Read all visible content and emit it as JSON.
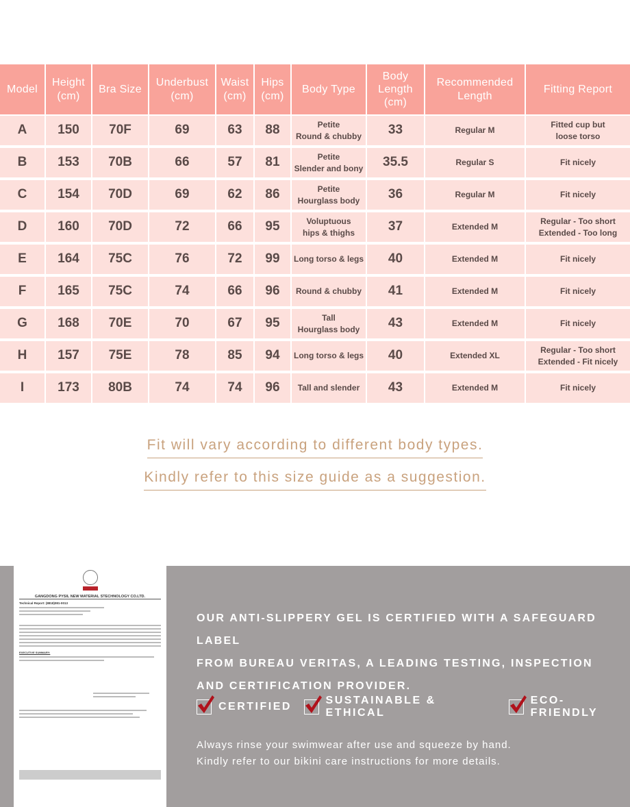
{
  "table": {
    "headers": [
      "Model",
      "Height\n(cm)",
      "Bra Size",
      "Underbust\n(cm)",
      "Waist\n(cm)",
      "Hips\n(cm)",
      "Body Type",
      "Body\nLength\n(cm)",
      "Recommended\nLength",
      "Fitting Report"
    ],
    "rows": [
      [
        "A",
        "150",
        "70F",
        "69",
        "63",
        "88",
        "Petite\nRound & chubby",
        "33",
        "Regular M",
        "Fitted cup but\nloose torso"
      ],
      [
        "B",
        "153",
        "70B",
        "66",
        "57",
        "81",
        "Petite\nSlender and bony",
        "35.5",
        "Regular S",
        "Fit nicely"
      ],
      [
        "C",
        "154",
        "70D",
        "69",
        "62",
        "86",
        "Petite\nHourglass body",
        "36",
        "Regular M",
        "Fit nicely"
      ],
      [
        "D",
        "160",
        "70D",
        "72",
        "66",
        "95",
        "Voluptuous\nhips & thighs",
        "37",
        "Extended M",
        "Regular - Too short\nExtended - Too long"
      ],
      [
        "E",
        "164",
        "75C",
        "76",
        "72",
        "99",
        "Long torso & legs",
        "40",
        "Extended M",
        "Fit nicely"
      ],
      [
        "F",
        "165",
        "75C",
        "74",
        "66",
        "96",
        "Round & chubby",
        "41",
        "Extended M",
        "Fit nicely"
      ],
      [
        "G",
        "168",
        "70E",
        "70",
        "67",
        "95",
        "Tall\nHourglass body",
        "43",
        "Extended M",
        "Fit nicely"
      ],
      [
        "H",
        "157",
        "75E",
        "78",
        "85",
        "94",
        "Long torso & legs",
        "40",
        "Extended XL",
        "Regular - Too short\nExtended - Fit nicely"
      ],
      [
        "I",
        "173",
        "80B",
        "74",
        "74",
        "96",
        "Tall and slender",
        "43",
        "Extended M",
        "Fit nicely"
      ]
    ]
  },
  "notes": [
    "Fit will vary according to different body types.",
    "Kindly refer to this size guide as a suggestion."
  ],
  "certificate": {
    "company": "GANGDONG PYSIL NEW MATERIAL STECHNOLOGY CO.LTD.",
    "report": "Technical Report:  (8818)081-0013",
    "summary": "EXECUTIVE SUMMARY:"
  },
  "certification": {
    "lines": [
      "OUR ANTI-SLIPPERY GEL IS CERTIFIED WITH A SAFEGUARD LABEL",
      "FROM BUREAU VERITAS, A LEADING TESTING, INSPECTION",
      "AND CERTIFICATION PROVIDER."
    ],
    "badges": [
      "CERTIFIED",
      "SUSTAINABLE & ETHICAL",
      "ECO-FRIENDLY"
    ],
    "care": [
      "Always rinse your swimwear after use and squeeze by hand.",
      "Kindly refer to our bikini care instructions for more details."
    ]
  },
  "colors": {
    "header": "#f9a39a",
    "cell": "#fde0dc",
    "note": "#c9a27e",
    "panel": "#a29e9e",
    "check": "#b0121b"
  }
}
